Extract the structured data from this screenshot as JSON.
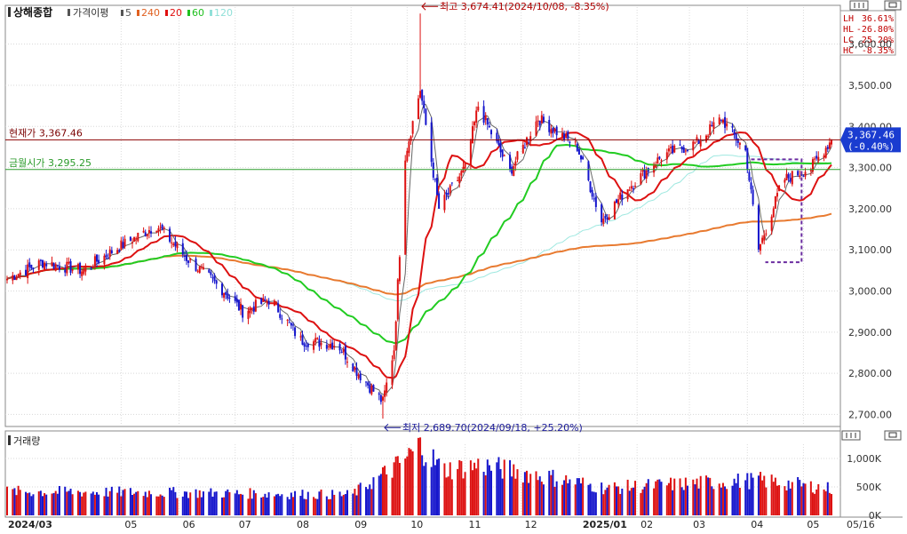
{
  "header": {
    "title": "상해종합",
    "indicator": "가격이평",
    "ma_legend": [
      {
        "label": "5",
        "color": "#555555"
      },
      {
        "label": "240",
        "color": "#e06020"
      },
      {
        "label": "20",
        "color": "#e01010"
      },
      {
        "label": "60",
        "color": "#20c020"
      },
      {
        "label": "120",
        "color": "#90e0d8"
      }
    ]
  },
  "stats_box": [
    {
      "label": "LH",
      "value": "36.61%"
    },
    {
      "label": "HL",
      "value": "-26.80%"
    },
    {
      "label": "LC",
      "value": "25.20%"
    },
    {
      "label": "HC",
      "value": "-8.35%"
    }
  ],
  "reference_lines": {
    "current": {
      "label": "현재가 3,367.46",
      "value": 3367.46,
      "color": "#8b0000"
    },
    "gold": {
      "label": "금월시가 3,295.25",
      "value": 3295.25,
      "color": "#2e9e2e"
    }
  },
  "annotations": {
    "high": {
      "text": "최고 3,674.41(2024/10/08, -8.35%)",
      "value": 3674.41,
      "date": "2024/10/08"
    },
    "low": {
      "text": "최저 2,689.70(2024/09/18, +25.20%)",
      "value": 2689.7,
      "date": "2024/09/18"
    }
  },
  "price_tag": {
    "value": "3,367.46",
    "change": "(-0.40%)"
  },
  "volume_panel": {
    "title": "거래량"
  },
  "x_labels": [
    "2024/03",
    "05",
    "06",
    "07",
    "08",
    "09",
    "10",
    "11",
    "12",
    "2025/01",
    "02",
    "03",
    "04",
    "05"
  ],
  "right_date": "05/16",
  "colors": {
    "up": "#dd1111",
    "down": "#1515cc",
    "grid": "#c8c8c8",
    "accent": "#1a3cd0"
  },
  "chart_data": [
    {
      "type": "candlestick",
      "title": "",
      "y_axis_ticks": [
        3600,
        3500,
        3400,
        3300,
        3200,
        3100,
        3000,
        2900,
        2800,
        2700
      ],
      "y_axis_labels": [
        "3,600.00",
        "3,500.00",
        "3,400.00",
        "3,300.00",
        "3,200.00",
        "3,100.00",
        "3,000.00",
        "2,900.00",
        "2,800.00",
        "2,700.00"
      ],
      "ylim": [
        2675,
        3690
      ],
      "grid": true,
      "date_range": [
        "2024/03",
        "2025/05/16"
      ],
      "close_keypoints": [
        {
          "date": "2024/03/01",
          "value": 3030
        },
        {
          "date": "2024/03/20",
          "value": 3070
        },
        {
          "date": "2024/04/10",
          "value": 3050
        },
        {
          "date": "2024/05/01",
          "value": 3110
        },
        {
          "date": "2024/05/20",
          "value": 3160
        },
        {
          "date": "2024/06/05",
          "value": 3080
        },
        {
          "date": "2024/06/25",
          "value": 3000
        },
        {
          "date": "2024/07/05",
          "value": 2950
        },
        {
          "date": "2024/07/20",
          "value": 2980
        },
        {
          "date": "2024/08/05",
          "value": 2880
        },
        {
          "date": "2024/08/25",
          "value": 2870
        },
        {
          "date": "2024/09/05",
          "value": 2800
        },
        {
          "date": "2024/09/18",
          "value": 2730
        },
        {
          "date": "2024/09/24",
          "value": 2860
        },
        {
          "date": "2024/09/30",
          "value": 3330
        },
        {
          "date": "2024/10/08",
          "value": 3490
        },
        {
          "date": "2024/10/18",
          "value": 3200
        },
        {
          "date": "2024/11/01",
          "value": 3300
        },
        {
          "date": "2024/11/08",
          "value": 3450
        },
        {
          "date": "2024/11/25",
          "value": 3290
        },
        {
          "date": "2024/12/10",
          "value": 3420
        },
        {
          "date": "2024/12/31",
          "value": 3350
        },
        {
          "date": "2025/01/13",
          "value": 3170
        },
        {
          "date": "2025/01/27",
          "value": 3250
        },
        {
          "date": "2025/02/15",
          "value": 3330
        },
        {
          "date": "2025/03/05",
          "value": 3360
        },
        {
          "date": "2025/03/18",
          "value": 3420
        },
        {
          "date": "2025/03/31",
          "value": 3340
        },
        {
          "date": "2025/04/07",
          "value": 3100
        },
        {
          "date": "2025/04/20",
          "value": 3270
        },
        {
          "date": "2025/05/05",
          "value": 3300
        },
        {
          "date": "2025/05/16",
          "value": 3367.46
        }
      ],
      "extremes": {
        "high": 3674.41,
        "low": 2689.7
      }
    },
    {
      "type": "bar",
      "title": "거래량",
      "y_axis_ticks": [
        1000000,
        500000,
        0
      ],
      "y_axis_labels": [
        "1,000K",
        "500K",
        "0K"
      ],
      "ylim": [
        0,
        1250000
      ],
      "volume_keypoints": [
        {
          "date": "2024/03/01",
          "value": 420000
        },
        {
          "date": "2024/06/01",
          "value": 400000
        },
        {
          "date": "2024/09/01",
          "value": 360000
        },
        {
          "date": "2024/09/27",
          "value": 900000
        },
        {
          "date": "2024/10/08",
          "value": 1230000
        },
        {
          "date": "2024/10/20",
          "value": 800000
        },
        {
          "date": "2024/11/10",
          "value": 880000
        },
        {
          "date": "2024/12/20",
          "value": 650000
        },
        {
          "date": "2025/01/15",
          "value": 480000
        },
        {
          "date": "2025/03/01",
          "value": 560000
        },
        {
          "date": "2025/04/07",
          "value": 620000
        },
        {
          "date": "2025/05/16",
          "value": 470000
        }
      ]
    }
  ]
}
